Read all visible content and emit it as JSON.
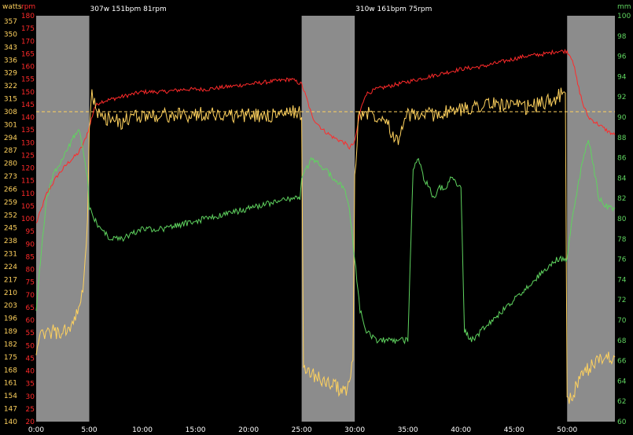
{
  "chart_data": {
    "type": "line",
    "axis_titles": {
      "watts": "watts",
      "rpm": "rpm",
      "mm": "mm"
    },
    "intervals": [
      {
        "label": "307w 151bpm 81rpm",
        "start": 300,
        "end": 1500
      },
      {
        "label": "310w 161bpm 75rpm",
        "start": 1800,
        "end": 3000
      }
    ],
    "x_range_seconds": [
      0,
      3270
    ],
    "x_ticks": [
      "0:00",
      "5:00",
      "10:00",
      "15:00",
      "20:00",
      "25:00",
      "30:00",
      "35:00",
      "40:00",
      "45:00",
      "50:00"
    ],
    "watts_axis": {
      "range": [
        140,
        360
      ],
      "ticks": [
        "140",
        "147",
        "154",
        "161",
        "168",
        "175",
        "182",
        "189",
        "196",
        "203",
        "210",
        "217",
        "224",
        "231",
        "238",
        "245",
        "252",
        "259",
        "266",
        "273",
        "280",
        "287",
        "294",
        "301",
        "308",
        "315",
        "322",
        "329",
        "336",
        "343",
        "350",
        "357"
      ]
    },
    "rpm_axis": {
      "range": [
        20,
        180
      ],
      "ticks": [
        "20",
        "25",
        "30",
        "35",
        "40",
        "45",
        "50",
        "55",
        "60",
        "65",
        "70",
        "75",
        "80",
        "85",
        "90",
        "95",
        "100",
        "105",
        "110",
        "115",
        "120",
        "125",
        "130",
        "135",
        "140",
        "145",
        "150",
        "155",
        "160",
        "165",
        "170",
        "175",
        "180"
      ]
    },
    "mm_axis": {
      "range": [
        60,
        100
      ],
      "ticks": [
        "60",
        "62",
        "64",
        "66",
        "68",
        "70",
        "72",
        "74",
        "76",
        "78",
        "80",
        "82",
        "84",
        "86",
        "88",
        "90",
        "92",
        "94",
        "96",
        "98",
        "100"
      ]
    },
    "reference_line": {
      "axis": "watts",
      "value": 308
    },
    "series": [
      {
        "axis": "rpm",
        "color": "#ff2a2a",
        "points": [
          [
            0,
            98
          ],
          [
            60,
            110
          ],
          [
            120,
            117
          ],
          [
            180,
            122
          ],
          [
            240,
            126
          ],
          [
            270,
            130
          ],
          [
            300,
            136
          ],
          [
            330,
            144
          ],
          [
            360,
            146
          ],
          [
            420,
            147
          ],
          [
            480,
            148
          ],
          [
            540,
            149
          ],
          [
            600,
            150
          ],
          [
            720,
            150
          ],
          [
            840,
            151
          ],
          [
            960,
            151
          ],
          [
            1080,
            152
          ],
          [
            1200,
            153
          ],
          [
            1320,
            154
          ],
          [
            1440,
            155
          ],
          [
            1500,
            153
          ],
          [
            1530,
            147
          ],
          [
            1560,
            140
          ],
          [
            1620,
            135
          ],
          [
            1680,
            132
          ],
          [
            1740,
            130
          ],
          [
            1770,
            128
          ],
          [
            1800,
            130
          ],
          [
            1830,
            142
          ],
          [
            1860,
            149
          ],
          [
            1920,
            151
          ],
          [
            2040,
            153
          ],
          [
            2160,
            155
          ],
          [
            2280,
            157
          ],
          [
            2400,
            159
          ],
          [
            2520,
            160
          ],
          [
            2640,
            162
          ],
          [
            2760,
            164
          ],
          [
            2880,
            165
          ],
          [
            2940,
            166
          ],
          [
            3000,
            166
          ],
          [
            3030,
            163
          ],
          [
            3060,
            153
          ],
          [
            3090,
            145
          ],
          [
            3120,
            140
          ],
          [
            3180,
            137
          ],
          [
            3240,
            134
          ],
          [
            3270,
            133
          ]
        ]
      },
      {
        "axis": "watts",
        "color": "#ffd25e",
        "points": [
          [
            0,
            180
          ],
          [
            30,
            186
          ],
          [
            60,
            188
          ],
          [
            90,
            189
          ],
          [
            120,
            188
          ],
          [
            150,
            188
          ],
          [
            180,
            190
          ],
          [
            210,
            194
          ],
          [
            240,
            200
          ],
          [
            270,
            215
          ],
          [
            290,
            250
          ],
          [
            300,
            300
          ],
          [
            315,
            318
          ],
          [
            330,
            312
          ],
          [
            360,
            305
          ],
          [
            420,
            304
          ],
          [
            480,
            302
          ],
          [
            540,
            305
          ],
          [
            600,
            306
          ],
          [
            720,
            306
          ],
          [
            840,
            306
          ],
          [
            960,
            307
          ],
          [
            1080,
            306
          ],
          [
            1200,
            306
          ],
          [
            1320,
            306
          ],
          [
            1440,
            307
          ],
          [
            1480,
            309
          ],
          [
            1500,
            305
          ],
          [
            1510,
            170
          ],
          [
            1560,
            166
          ],
          [
            1620,
            162
          ],
          [
            1680,
            160
          ],
          [
            1740,
            156
          ],
          [
            1770,
            160
          ],
          [
            1790,
            175
          ],
          [
            1800,
            270
          ],
          [
            1820,
            305
          ],
          [
            1860,
            308
          ],
          [
            1920,
            306
          ],
          [
            1980,
            305
          ],
          [
            2010,
            296
          ],
          [
            2040,
            292
          ],
          [
            2070,
            300
          ],
          [
            2100,
            306
          ],
          [
            2160,
            306
          ],
          [
            2280,
            307
          ],
          [
            2400,
            309
          ],
          [
            2520,
            312
          ],
          [
            2640,
            312
          ],
          [
            2760,
            310
          ],
          [
            2880,
            313
          ],
          [
            2940,
            316
          ],
          [
            2990,
            318
          ],
          [
            3000,
            150
          ],
          [
            3030,
            155
          ],
          [
            3090,
            165
          ],
          [
            3150,
            172
          ],
          [
            3210,
            175
          ],
          [
            3270,
            175
          ]
        ]
      },
      {
        "axis": "mm",
        "color": "#5fd35f",
        "points": [
          [
            0,
            71
          ],
          [
            30,
            77
          ],
          [
            60,
            82
          ],
          [
            90,
            84
          ],
          [
            120,
            85
          ],
          [
            150,
            86
          ],
          [
            180,
            87
          ],
          [
            210,
            88
          ],
          [
            240,
            89
          ],
          [
            270,
            86
          ],
          [
            290,
            84
          ],
          [
            300,
            81
          ],
          [
            330,
            80
          ],
          [
            360,
            79
          ],
          [
            420,
            78
          ],
          [
            480,
            78
          ],
          [
            540,
            78.5
          ],
          [
            600,
            79
          ],
          [
            720,
            79
          ],
          [
            840,
            79.5
          ],
          [
            960,
            80
          ],
          [
            1080,
            80.5
          ],
          [
            1200,
            81
          ],
          [
            1320,
            81.5
          ],
          [
            1440,
            82
          ],
          [
            1490,
            82
          ],
          [
            1500,
            84
          ],
          [
            1530,
            85
          ],
          [
            1560,
            86
          ],
          [
            1620,
            85
          ],
          [
            1680,
            84
          ],
          [
            1740,
            83
          ],
          [
            1770,
            81
          ],
          [
            1800,
            76
          ],
          [
            1830,
            71
          ],
          [
            1860,
            69
          ],
          [
            1920,
            68
          ],
          [
            2040,
            68
          ],
          [
            2100,
            68
          ],
          [
            2130,
            85
          ],
          [
            2160,
            86
          ],
          [
            2190,
            84
          ],
          [
            2220,
            83
          ],
          [
            2250,
            82
          ],
          [
            2280,
            83
          ],
          [
            2310,
            83
          ],
          [
            2340,
            84
          ],
          [
            2400,
            83
          ],
          [
            2420,
            69
          ],
          [
            2460,
            68
          ],
          [
            2520,
            69
          ],
          [
            2640,
            71
          ],
          [
            2760,
            73
          ],
          [
            2880,
            75
          ],
          [
            2940,
            76
          ],
          [
            3000,
            76
          ],
          [
            3030,
            80
          ],
          [
            3060,
            83
          ],
          [
            3090,
            86
          ],
          [
            3120,
            88
          ],
          [
            3150,
            85
          ],
          [
            3180,
            82
          ],
          [
            3240,
            81
          ],
          [
            3270,
            81
          ]
        ]
      }
    ]
  }
}
